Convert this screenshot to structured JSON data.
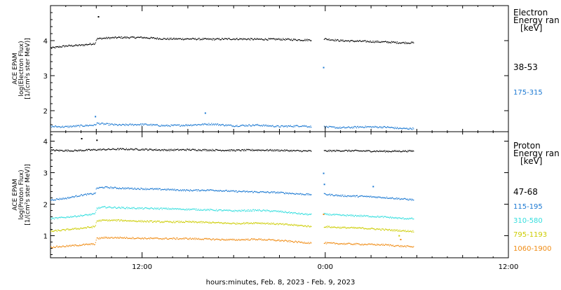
{
  "figure": {
    "xlabel": "hours:minutes, Feb.  8, 2023 - Feb.  9, 2023",
    "x_ticks": [
      {
        "hour": 12,
        "label": "12:00"
      },
      {
        "hour": 24,
        "label": "0:00"
      },
      {
        "hour": 36,
        "label": "12:00"
      }
    ]
  },
  "chart_data": [
    {
      "type": "scatter",
      "panel": "electron",
      "ylabel_lines": [
        "ACE EPAM",
        "log(Electron Flux)",
        "[1/(cm²s ster MeV)]"
      ],
      "legend_title": [
        "Electron",
        "Energy ran",
        "[keV]"
      ],
      "x_unit": "hours since 2023-02-08 00:00 UT",
      "xlim": [
        6,
        36
      ],
      "ylim": [
        1.4,
        5.0
      ],
      "yticks": [
        2,
        3,
        4
      ],
      "data_gap_hours": [
        23.1,
        23.9
      ],
      "series": [
        {
          "name": "38-53",
          "color": "#000000",
          "x": [
            6.0,
            7.0,
            8.0,
            8.9,
            9.0,
            9.5,
            10.5,
            12.0,
            13.5,
            15.0,
            16.5,
            18.0,
            19.5,
            21.0,
            22.5,
            23.1,
            23.9,
            25.0,
            26.5,
            28.0,
            29.0,
            29.8
          ],
          "y": [
            3.8,
            3.86,
            3.88,
            3.93,
            4.06,
            4.08,
            4.1,
            4.1,
            4.06,
            4.06,
            4.05,
            4.06,
            4.05,
            4.05,
            4.03,
            4.03,
            4.06,
            4.01,
            3.99,
            3.97,
            3.95,
            3.95
          ]
        },
        {
          "name": "175-315",
          "color": "#1a78d2",
          "x": [
            6.0,
            7.0,
            8.0,
            8.9,
            9.0,
            9.5,
            10.5,
            12.0,
            13.5,
            15.0,
            16.5,
            18.0,
            19.5,
            21.0,
            22.5,
            23.1,
            23.9,
            25.0,
            26.5,
            28.0,
            29.0,
            29.8
          ],
          "y": [
            1.56,
            1.55,
            1.58,
            1.6,
            1.65,
            1.63,
            1.6,
            1.62,
            1.58,
            1.6,
            1.63,
            1.58,
            1.6,
            1.56,
            1.58,
            1.55,
            1.55,
            1.52,
            1.55,
            1.54,
            1.5,
            1.5
          ]
        }
      ],
      "outliers": [
        {
          "series": "38-53",
          "x": [
            9.1
          ],
          "y": [
            4.7
          ]
        },
        {
          "series": "175-315",
          "x": [
            8.9,
            16.1,
            23.85
          ],
          "y": [
            1.85,
            1.95,
            3.25
          ]
        }
      ]
    },
    {
      "type": "scatter",
      "panel": "proton",
      "ylabel_lines": [
        "ACE EPAM",
        "log(Proton Flux)",
        "[1/(cm²s ster MeV)]"
      ],
      "legend_title": [
        "Proton",
        "Energy ran",
        "[keV]"
      ],
      "x_unit": "hours since 2023-02-08 00:00 UT",
      "xlim": [
        6,
        36
      ],
      "ylim": [
        0.3,
        4.3
      ],
      "yticks": [
        1,
        2,
        3,
        4
      ],
      "data_gap_hours": [
        23.1,
        23.9
      ],
      "series": [
        {
          "name": "47-68",
          "color": "#000000",
          "x": [
            6.0,
            7.5,
            9.0,
            10.5,
            12.0,
            13.5,
            15.0,
            16.5,
            18.0,
            19.5,
            21.0,
            22.5,
            23.1,
            23.9,
            25.0,
            26.5,
            28.0,
            29.8
          ],
          "y": [
            3.72,
            3.71,
            3.74,
            3.76,
            3.75,
            3.73,
            3.74,
            3.73,
            3.72,
            3.73,
            3.72,
            3.7,
            3.7,
            3.7,
            3.71,
            3.7,
            3.69,
            3.7
          ]
        },
        {
          "name": "115-195",
          "color": "#1a78d2",
          "x": [
            6.0,
            7.0,
            8.0,
            8.9,
            9.0,
            9.5,
            10.5,
            12.0,
            13.5,
            15.0,
            16.5,
            18.0,
            19.5,
            21.0,
            22.5,
            23.1,
            23.9,
            25.0,
            26.5,
            28.0,
            29.0,
            29.8
          ],
          "y": [
            2.15,
            2.2,
            2.3,
            2.35,
            2.52,
            2.55,
            2.52,
            2.5,
            2.48,
            2.45,
            2.46,
            2.42,
            2.4,
            2.38,
            2.33,
            2.32,
            2.33,
            2.28,
            2.26,
            2.22,
            2.18,
            2.15
          ]
        },
        {
          "name": "310-580",
          "color": "#33dede",
          "x": [
            6.0,
            7.0,
            8.0,
            8.9,
            9.0,
            9.5,
            10.5,
            12.0,
            13.5,
            15.0,
            16.5,
            18.0,
            19.5,
            21.0,
            22.5,
            23.1,
            23.9,
            25.0,
            26.5,
            28.0,
            29.0,
            29.8
          ],
          "y": [
            1.55,
            1.6,
            1.65,
            1.7,
            1.88,
            1.92,
            1.9,
            1.88,
            1.87,
            1.85,
            1.83,
            1.8,
            1.82,
            1.78,
            1.7,
            1.68,
            1.7,
            1.66,
            1.64,
            1.6,
            1.56,
            1.55
          ]
        },
        {
          "name": "795-1193",
          "color": "#cccc00",
          "x": [
            6.0,
            7.0,
            8.0,
            8.9,
            9.0,
            9.5,
            10.5,
            12.0,
            13.5,
            15.0,
            16.5,
            18.0,
            19.5,
            21.0,
            22.5,
            23.1,
            23.9,
            25.0,
            26.5,
            28.0,
            29.0,
            29.8
          ],
          "y": [
            1.15,
            1.2,
            1.25,
            1.3,
            1.48,
            1.5,
            1.5,
            1.47,
            1.45,
            1.45,
            1.43,
            1.4,
            1.42,
            1.38,
            1.33,
            1.3,
            1.3,
            1.27,
            1.25,
            1.2,
            1.17,
            1.15
          ]
        },
        {
          "name": "1060-1900",
          "color": "#f08c14",
          "x": [
            6.0,
            7.0,
            8.0,
            8.9,
            9.0,
            9.5,
            10.5,
            12.0,
            13.5,
            15.0,
            16.5,
            18.0,
            19.5,
            21.0,
            22.5,
            23.1,
            23.9,
            25.0,
            26.5,
            28.0,
            29.0,
            29.8
          ],
          "y": [
            0.65,
            0.68,
            0.72,
            0.75,
            0.92,
            0.95,
            0.95,
            0.93,
            0.92,
            0.92,
            0.9,
            0.88,
            0.9,
            0.86,
            0.8,
            0.78,
            0.78,
            0.76,
            0.74,
            0.72,
            0.68,
            0.66
          ]
        }
      ],
      "outliers": [
        {
          "series": "47-68",
          "x": [
            8.0,
            9.0
          ],
          "y": [
            4.1,
            4.05
          ]
        },
        {
          "series": "115-195",
          "x": [
            23.85,
            23.9,
            27.1
          ],
          "y": [
            3.0,
            2.65,
            2.58
          ]
        },
        {
          "series": "795-1193",
          "x": [
            28.8
          ],
          "y": [
            1.02
          ]
        },
        {
          "series": "1060-1900",
          "x": [
            28.9,
            23.85
          ],
          "y": [
            0.9,
            1.7
          ]
        }
      ]
    }
  ]
}
